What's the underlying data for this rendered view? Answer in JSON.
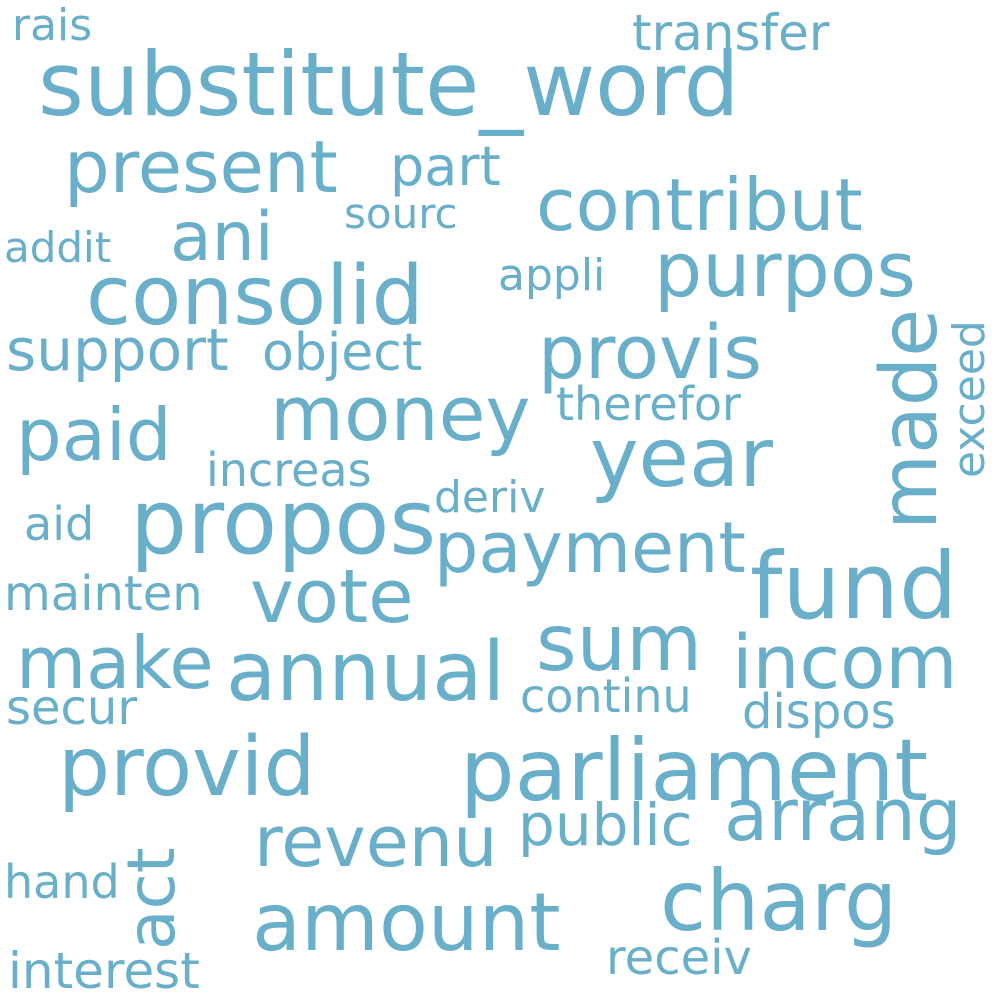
{
  "word_color": "#6aafc9",
  "background_color": "#ffffff",
  "words": [
    {
      "text": "substitute_word",
      "weight": 100
    },
    {
      "text": "parliament",
      "weight": 78
    },
    {
      "text": "consolid",
      "weight": 76
    },
    {
      "text": "fund",
      "weight": 76
    },
    {
      "text": "provid",
      "weight": 74
    },
    {
      "text": "annual",
      "weight": 72
    },
    {
      "text": "propos",
      "weight": 72
    },
    {
      "text": "contribut",
      "weight": 70
    },
    {
      "text": "year",
      "weight": 70
    },
    {
      "text": "amount",
      "weight": 70
    },
    {
      "text": "purpos",
      "weight": 68
    },
    {
      "text": "present",
      "weight": 66
    },
    {
      "text": "money",
      "weight": 66
    },
    {
      "text": "made",
      "weight": 66
    },
    {
      "text": "sum",
      "weight": 66
    },
    {
      "text": "incom",
      "weight": 64
    },
    {
      "text": "payment",
      "weight": 64
    },
    {
      "text": "charg",
      "weight": 64
    },
    {
      "text": "provis",
      "weight": 62
    },
    {
      "text": "paid",
      "weight": 62
    },
    {
      "text": "vote",
      "weight": 62
    },
    {
      "text": "make",
      "weight": 60
    },
    {
      "text": "arrang",
      "weight": 60
    },
    {
      "text": "revenu",
      "weight": 60
    },
    {
      "text": "act",
      "weight": 58
    },
    {
      "text": "ani",
      "weight": 56
    },
    {
      "text": "support",
      "weight": 48
    },
    {
      "text": "public",
      "weight": 48
    },
    {
      "text": "transfer",
      "weight": 46
    },
    {
      "text": "object",
      "weight": 44
    },
    {
      "text": "part",
      "weight": 42
    },
    {
      "text": "interest",
      "weight": 42
    },
    {
      "text": "increas",
      "weight": 40
    },
    {
      "text": "continu",
      "weight": 40
    },
    {
      "text": "therefor",
      "weight": 40
    },
    {
      "text": "receiv",
      "weight": 40
    },
    {
      "text": "mainten",
      "weight": 40
    },
    {
      "text": "dispos",
      "weight": 40
    },
    {
      "text": "addit",
      "weight": 38
    },
    {
      "text": "appli",
      "weight": 38
    },
    {
      "text": "exceed",
      "weight": 38
    },
    {
      "text": "sourc",
      "weight": 36
    },
    {
      "text": "secur",
      "weight": 36
    },
    {
      "text": "hand",
      "weight": 36
    },
    {
      "text": "rais",
      "weight": 36
    },
    {
      "text": "deriv",
      "weight": 36
    },
    {
      "text": "aid",
      "weight": 34
    }
  ]
}
